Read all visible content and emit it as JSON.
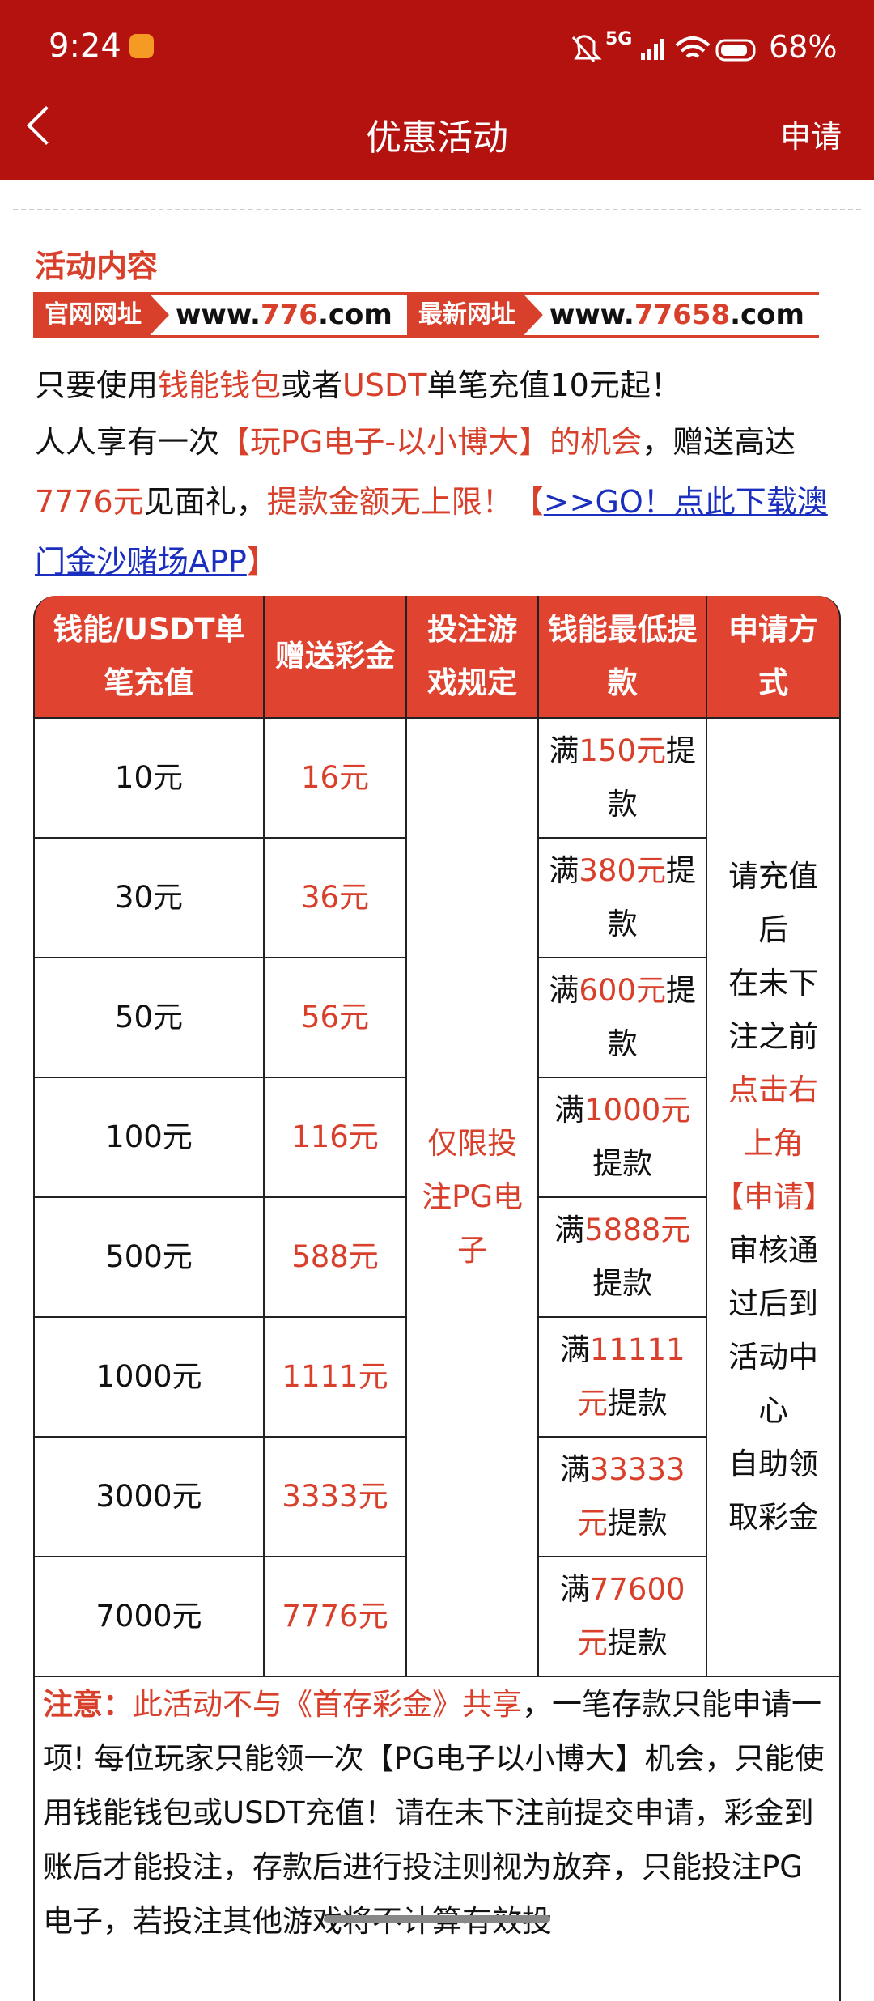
{
  "status_bar": {
    "time": "9:24",
    "network": "5G",
    "battery": "68%"
  },
  "header": {
    "title": "优惠活动",
    "action": "申请"
  },
  "section_title": "活动内容",
  "banner": [
    {
      "label": "官网网址",
      "url": [
        {
          "text": "www."
        },
        {
          "text": "776",
          "style": "highlight"
        },
        {
          "text": ".com"
        }
      ]
    },
    {
      "label": "最新网址",
      "url": [
        {
          "text": "www."
        },
        {
          "text": "77658",
          "style": "highlight"
        },
        {
          "text": ".com"
        }
      ]
    }
  ],
  "paragraphs": [
    [
      {
        "text": "只要使用"
      },
      {
        "text": "钱能钱包",
        "style": "highlight"
      },
      {
        "text": "或者"
      },
      {
        "text": "USDT",
        "style": "highlight"
      },
      {
        "text": "单笔充值10元起！"
      }
    ],
    [
      {
        "text": "人人享有一次"
      },
      {
        "text": "【玩PG电子-以小博大】的机会",
        "style": "highlight"
      },
      {
        "text": "，赠送高达"
      },
      {
        "text": "7776元",
        "style": "highlight"
      },
      {
        "text": "见面礼，"
      },
      {
        "text": "提款金额无上限！",
        "style": "highlight"
      },
      {
        "text": "【",
        "style": "highlight"
      },
      {
        "text": ">>GO！点此下载澳门金沙赌场APP",
        "style": "link"
      },
      {
        "text": "】",
        "style": "highlight"
      }
    ]
  ],
  "table": {
    "columns": [
      "钱能/USDT单笔充值",
      "赠送彩金",
      "投注游戏规定",
      "钱能最低提款",
      "申请方式"
    ],
    "rows": [
      {
        "deposit": "10元",
        "bonus": "16元",
        "withdrawal": [
          {
            "text": "满"
          },
          {
            "text": "150元",
            "style": "highlight"
          },
          {
            "text": "提款"
          }
        ]
      },
      {
        "deposit": "30元",
        "bonus": "36元",
        "withdrawal": [
          {
            "text": "满"
          },
          {
            "text": "380元",
            "style": "highlight"
          },
          {
            "text": "提款"
          }
        ]
      },
      {
        "deposit": "50元",
        "bonus": "56元",
        "withdrawal": [
          {
            "text": "满"
          },
          {
            "text": "600元",
            "style": "highlight"
          },
          {
            "text": "提款"
          }
        ]
      },
      {
        "deposit": "100元",
        "bonus": "116元",
        "withdrawal": [
          {
            "text": "满"
          },
          {
            "text": "1000元",
            "style": "highlight"
          },
          {
            "text": "提款"
          }
        ]
      },
      {
        "deposit": "500元",
        "bonus": "588元",
        "withdrawal": [
          {
            "text": "满"
          },
          {
            "text": "5888元",
            "style": "highlight"
          },
          {
            "text": "提款"
          }
        ]
      },
      {
        "deposit": "1000元",
        "bonus": "1111元",
        "withdrawal": [
          {
            "text": "满"
          },
          {
            "text": "11111元",
            "style": "highlight"
          },
          {
            "text": "提款"
          }
        ]
      },
      {
        "deposit": "3000元",
        "bonus": "3333元",
        "withdrawal": [
          {
            "text": "满"
          },
          {
            "text": "33333元",
            "style": "highlight"
          },
          {
            "text": "提款"
          }
        ]
      },
      {
        "deposit": "7000元",
        "bonus": "7776元",
        "withdrawal": [
          {
            "text": "满"
          },
          {
            "text": "77600元",
            "style": "highlight"
          },
          {
            "text": "提款"
          }
        ]
      }
    ],
    "game_rule": "仅限投注PG电子",
    "apply_method": [
      {
        "text": "请充值后"
      },
      {
        "text": "在未下注之前"
      },
      {
        "text": "点击右上角【申请】",
        "style": "highlight"
      },
      {
        "text": "审核通过后到活动中心"
      },
      {
        "text": "自助领取彩金"
      }
    ]
  },
  "notes": [
    {
      "text": "注意：",
      "style": "highlight-bold"
    },
    {
      "text": "此活动不与《首存彩金》共享",
      "style": "highlight"
    },
    {
      "text": "，一笔存款只能申请一项! 每位玩家只能领一次【PG电子以小博大】机会，只能使用钱能钱包或USDT充值！请在未下注前提交申请，彩金到账后才能投注，存款后进行投注则视为放弃，只能投注PG电子，若投注其他游戏将不计算有效投"
    }
  ]
}
